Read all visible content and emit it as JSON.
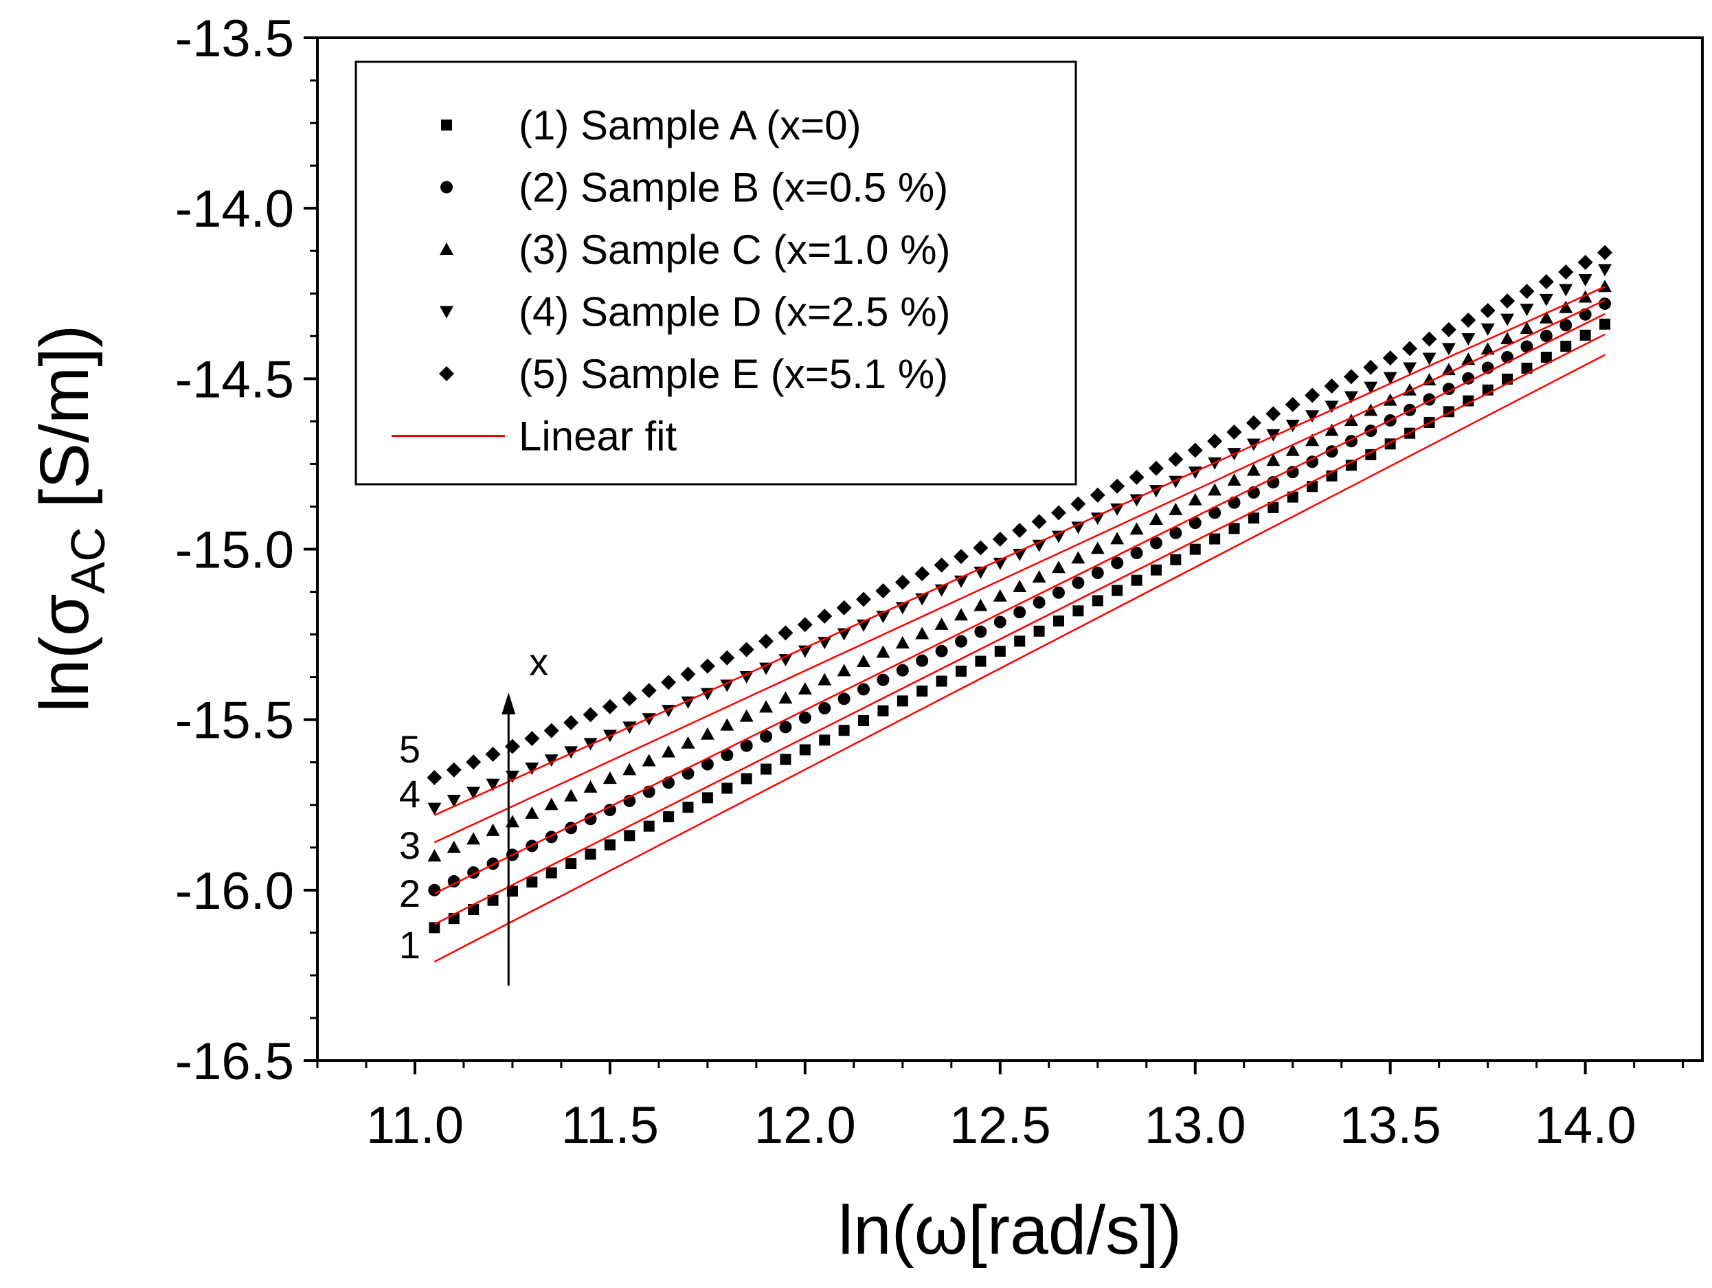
{
  "chart_data": {
    "type": "scatter",
    "title": "",
    "xlabel": "ln(ω[rad/s])",
    "ylabel_main": "ln(σ",
    "ylabel_sub": "AC",
    "ylabel_tail": " [S/m])",
    "xlim": [
      10.75,
      14.3
    ],
    "ylim": [
      -16.5,
      -13.5
    ],
    "x_ticks": [
      11.0,
      11.5,
      12.0,
      12.5,
      13.0,
      13.5,
      14.0
    ],
    "x_tick_labels": [
      "11.0",
      "11.5",
      "12.0",
      "12.5",
      "13.0",
      "13.5",
      "14.0"
    ],
    "y_ticks": [
      -16.5,
      -16.0,
      -15.5,
      -15.0,
      -14.5,
      -14.0,
      -13.5
    ],
    "y_tick_labels": [
      "-16.5",
      "-16.0",
      "-15.5",
      "-15.0",
      "-14.5",
      "-14.0",
      "-13.5"
    ],
    "grid": false,
    "legend_position": "top-left",
    "x_range": [
      11.05,
      14.05
    ],
    "n_points": 61,
    "series": [
      {
        "name": "(1) Sample A (x=0)",
        "marker": "square",
        "curve_label": "1",
        "y_start": -16.14,
        "y_end": -14.37,
        "fit_start": -16.21,
        "fit_end": -14.43
      },
      {
        "name": "(2) Sample B (x=0.5 %)",
        "marker": "circle",
        "curve_label": "2",
        "y_start": -16.03,
        "y_end": -14.31,
        "fit_start": -16.1,
        "fit_end": -14.37
      },
      {
        "name": "(3) Sample C (x=1.0 %)",
        "marker": "triangle-up",
        "curve_label": "3",
        "y_start": -15.93,
        "y_end": -14.26,
        "fit_start": -16.01,
        "fit_end": -14.31
      },
      {
        "name": "(4) Sample D (x=2.5 %)",
        "marker": "triangle-down",
        "curve_label": "4",
        "y_start": -15.79,
        "y_end": -14.21,
        "fit_start": -15.86,
        "fit_end": -14.27
      },
      {
        "name": "(5) Sample E (x=5.1 %)",
        "marker": "diamond",
        "curve_label": "5",
        "y_start": -15.7,
        "y_end": -14.16,
        "fit_start": -15.78,
        "fit_end": -14.23
      }
    ],
    "fit_legend": "Linear fit",
    "fit_color": "#ff0000",
    "marker_color": "#000000",
    "arrow_label": "x",
    "arrow_x": 11.24,
    "arrow_y_from": -16.28,
    "arrow_y_to": -15.42
  }
}
